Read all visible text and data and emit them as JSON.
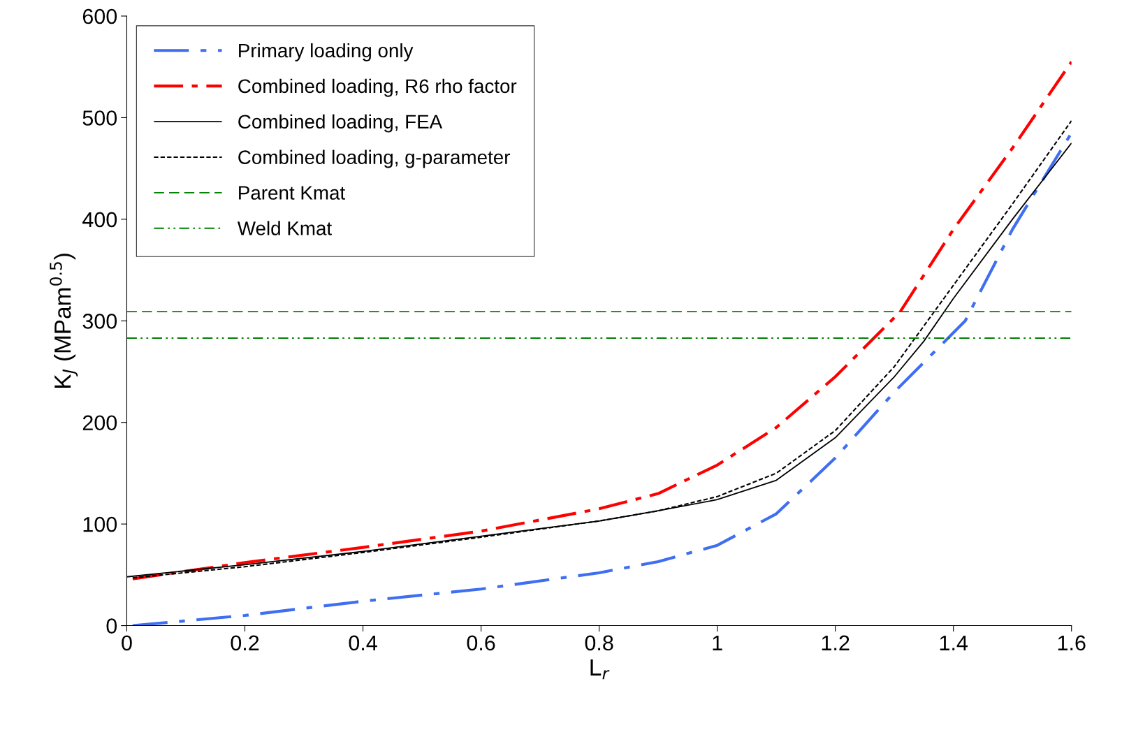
{
  "chart_data": {
    "type": "line",
    "xlabel": "L$_{r}$",
    "ylabel": "K$_{J}$ (MPam$^{0.5}$)",
    "xlim": [
      0,
      1.6
    ],
    "ylim": [
      0,
      600
    ],
    "xticks": [
      0,
      0.2,
      0.4,
      0.6,
      0.8,
      1,
      1.2,
      1.4,
      1.6
    ],
    "yticks": [
      0,
      100,
      200,
      300,
      400,
      500,
      600
    ],
    "grid": false,
    "legend": "top left",
    "marker": "none",
    "series": [
      {
        "name": "Primary loading only",
        "color": "#3f6ff0",
        "line_style": "longdashdot",
        "x": [
          0.01,
          0.2,
          0.4,
          0.6,
          0.8,
          0.9,
          1.0,
          1.1,
          1.2,
          1.3,
          1.42,
          1.5,
          1.6
        ],
        "values": [
          0,
          10,
          24,
          36,
          52,
          63,
          79,
          110,
          165,
          230,
          300,
          390,
          485
        ]
      },
      {
        "name": "Combined loading, R6 rho factor",
        "color": "#ff0000",
        "line_style": "dashdot",
        "x": [
          0.01,
          0.2,
          0.4,
          0.6,
          0.8,
          0.9,
          1.0,
          1.1,
          1.2,
          1.31,
          1.4,
          1.5,
          1.6
        ],
        "values": [
          46,
          62,
          77,
          93,
          115,
          130,
          158,
          195,
          245,
          309,
          390,
          470,
          555
        ]
      },
      {
        "name": "Combined loading, FEA",
        "color": "#000000",
        "line_style": "solid",
        "x": [
          0,
          0.2,
          0.4,
          0.6,
          0.8,
          0.9,
          1.0,
          1.1,
          1.2,
          1.3,
          1.35,
          1.4,
          1.5,
          1.6
        ],
        "values": [
          48,
          60,
          73,
          88,
          103,
          113,
          124,
          143,
          185,
          245,
          280,
          322,
          400,
          475
        ]
      },
      {
        "name": "Combined loading, g-parameter",
        "color": "#000000",
        "line_style": "dotted",
        "x": [
          0.01,
          0.2,
          0.4,
          0.6,
          0.8,
          0.9,
          1.0,
          1.1,
          1.2,
          1.3,
          1.4,
          1.5,
          1.6
        ],
        "values": [
          47,
          58,
          72,
          87,
          103,
          113,
          127,
          150,
          192,
          255,
          335,
          415,
          497
        ]
      },
      {
        "name": "Parent Kmat",
        "color": "#008000",
        "line_style": "dashed",
        "x": [
          0,
          1.6
        ],
        "values": [
          309,
          309
        ]
      },
      {
        "name": "Weld Kmat",
        "color": "#008000",
        "line_style": "dashdotdot",
        "x": [
          0,
          1.6
        ],
        "values": [
          283,
          283
        ]
      }
    ]
  }
}
